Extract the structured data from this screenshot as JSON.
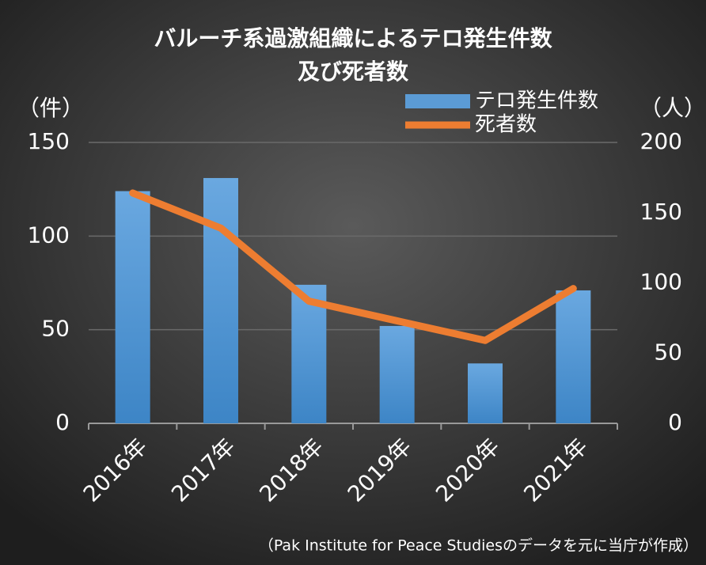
{
  "chart_data": {
    "type": "bar_line",
    "title": [
      "バルーチ系過激組織によるテロ発生件数",
      "及び死者数"
    ],
    "y_label": "（件）",
    "y2_label": "（人）",
    "source": "（Pak Institute for Peace Studiesのデータを元に当庁が作成）",
    "categories": [
      "2016年",
      "2017年",
      "2018年",
      "2019年",
      "2020年",
      "2021年"
    ],
    "series": [
      {
        "name": "テロ発生件数",
        "color": "#5b9bd5",
        "type": "bar",
        "values": [
          124,
          131,
          74,
          52,
          32,
          71
        ]
      },
      {
        "name": "死者数",
        "color": "#ed7d31",
        "type": "line",
        "axis": "y2",
        "values": [
          164,
          139,
          87,
          73,
          59,
          96
        ]
      }
    ],
    "ylim": [
      0,
      150
    ],
    "yticks": [
      0,
      50,
      100,
      150
    ],
    "y2lim": [
      0,
      200
    ],
    "y2ticks": [
      0,
      50,
      100,
      150,
      200
    ],
    "grid": true
  }
}
